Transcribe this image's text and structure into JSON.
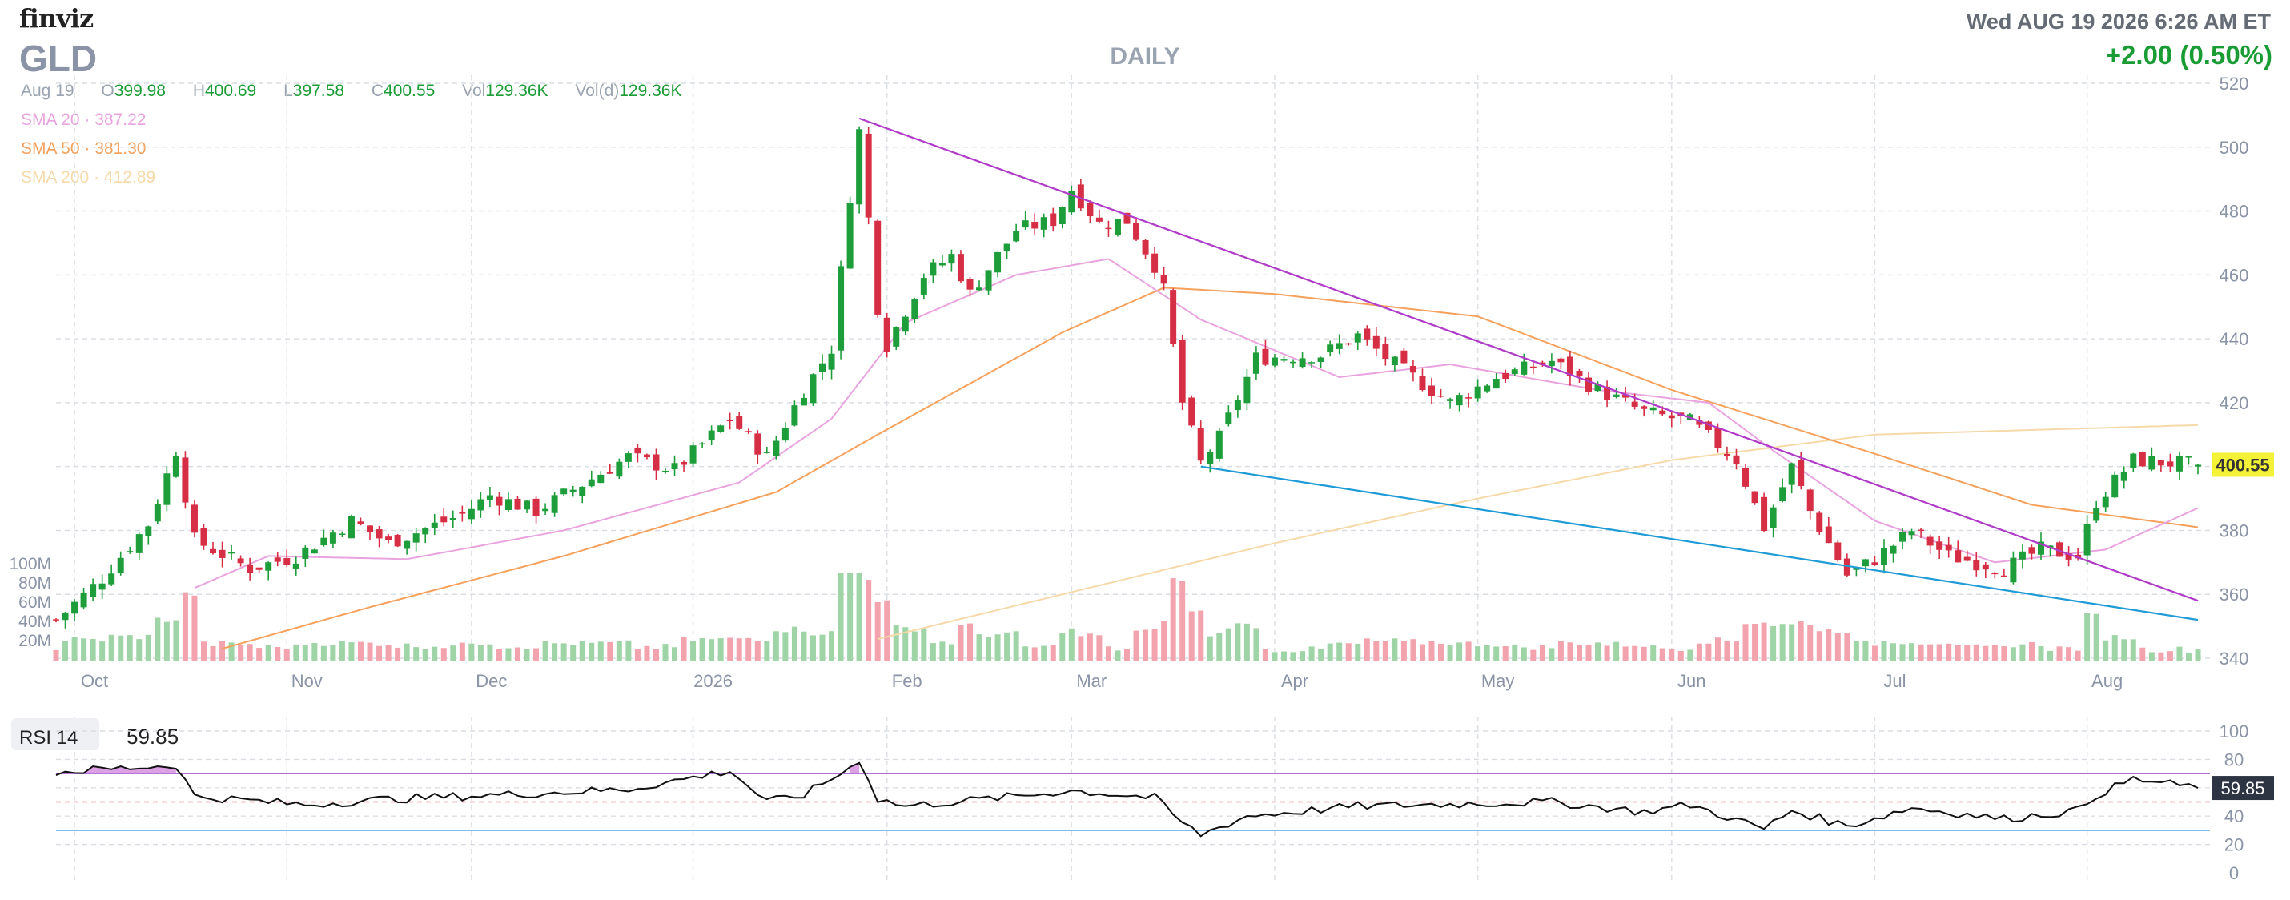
{
  "header": {
    "logo": "finviz",
    "ticker": "GLD",
    "timeframe": "DAILY",
    "datetime": "Wed AUG 19 2026 6:26 AM ET",
    "change": "+2.00 (0.50%)"
  },
  "ohlc": {
    "date": "Aug 19",
    "open_label": "O",
    "open": "399.98",
    "high_label": "H",
    "high": "400.69",
    "low_label": "L",
    "low": "397.58",
    "close_label": "C",
    "close": "400.55",
    "vol_label": "Vol",
    "vol": "129.36K",
    "vold_label": "Vol(d)",
    "vold": "129.36K"
  },
  "sma": [
    {
      "label": "SMA 20",
      "value": "387.22",
      "color": "#e9a3de"
    },
    {
      "label": "SMA 50",
      "value": "381.30",
      "color": "#f5a15c"
    },
    {
      "label": "SMA 200",
      "value": "412.89",
      "color": "#f6d9a9"
    }
  ],
  "colors": {
    "up": "#1e9e3a",
    "down": "#d62f45",
    "vol_up": "#9fd4a7",
    "vol_down": "#f2a3ad",
    "trend_upper": "#b03bc8",
    "trend_lower": "#1f9bd6",
    "rsi": "#111111",
    "rsi_fill": "#d68fe0",
    "price_tag": "#f4f236"
  },
  "chart_data": {
    "type": "candlestick",
    "y_range": [
      340,
      520
    ],
    "y_ticks": [
      "520",
      "500",
      "480",
      "460",
      "440",
      "420",
      "400",
      "380",
      "360",
      "340"
    ],
    "x_labels": [
      "Oct",
      "Nov",
      "Dec",
      "2026",
      "Feb",
      "Mar",
      "Apr",
      "May",
      "Jun",
      "Jul",
      "Aug"
    ],
    "last_price": "400.55",
    "volume_ticks": [
      "100M",
      "80M",
      "60M",
      "40M",
      "20M"
    ],
    "trendlines": [
      {
        "from": [
          "2026-01-28",
          509
        ],
        "to": [
          "2026-08-19",
          358
        ]
      },
      {
        "from": [
          "2026-03-20",
          400
        ],
        "to": [
          "2026-08-19",
          352
        ]
      }
    ],
    "rsi": {
      "label": "RSI 14",
      "value": "59.85",
      "levels": [
        70,
        30
      ],
      "ticks": [
        "100",
        "80",
        "60",
        "40",
        "20",
        "0"
      ]
    },
    "price_keyframes": [
      [
        "2025-09-29",
        352
      ],
      [
        "2025-10-06",
        365
      ],
      [
        "2025-10-13",
        382
      ],
      [
        "2025-10-16",
        405
      ],
      [
        "2025-10-20",
        377
      ],
      [
        "2025-10-28",
        368
      ],
      [
        "2025-11-04",
        372
      ],
      [
        "2025-11-12",
        383
      ],
      [
        "2025-11-18",
        376
      ],
      [
        "2025-11-28",
        385
      ],
      [
        "2025-12-03",
        391
      ],
      [
        "2025-12-10",
        386
      ],
      [
        "2025-12-24",
        403
      ],
      [
        "2025-12-31",
        399
      ],
      [
        "2026-01-08",
        415
      ],
      [
        "2026-01-14",
        403
      ],
      [
        "2026-01-20",
        424
      ],
      [
        "2026-01-23",
        437
      ],
      [
        "2026-01-27",
        485
      ],
      [
        "2026-01-28",
        505
      ],
      [
        "2026-01-30",
        450
      ],
      [
        "2026-02-02",
        438
      ],
      [
        "2026-02-06",
        460
      ],
      [
        "2026-02-11",
        466
      ],
      [
        "2026-02-13",
        454
      ],
      [
        "2026-02-20",
        474
      ],
      [
        "2026-02-26",
        477
      ],
      [
        "2026-03-02",
        487
      ],
      [
        "2026-03-05",
        476
      ],
      [
        "2026-03-10",
        477
      ],
      [
        "2026-03-13",
        463
      ],
      [
        "2026-03-16",
        455
      ],
      [
        "2026-03-18",
        420
      ],
      [
        "2026-03-20",
        401
      ],
      [
        "2026-03-24",
        409
      ],
      [
        "2026-03-30",
        434
      ],
      [
        "2026-04-08",
        435
      ],
      [
        "2026-04-14",
        441
      ],
      [
        "2026-04-20",
        432
      ],
      [
        "2026-04-28",
        420
      ],
      [
        "2026-05-05",
        428
      ],
      [
        "2026-05-13",
        433
      ],
      [
        "2026-05-20",
        424
      ],
      [
        "2026-05-27",
        417
      ],
      [
        "2026-06-03",
        414
      ],
      [
        "2026-06-10",
        402
      ],
      [
        "2026-06-15",
        381
      ],
      [
        "2026-06-18",
        400
      ],
      [
        "2026-06-22",
        386
      ],
      [
        "2026-06-26",
        366
      ],
      [
        "2026-07-01",
        371
      ],
      [
        "2026-07-07",
        380
      ],
      [
        "2026-07-13",
        372
      ],
      [
        "2026-07-21",
        368
      ],
      [
        "2026-07-27",
        374
      ],
      [
        "2026-07-31",
        372
      ],
      [
        "2026-08-04",
        389
      ],
      [
        "2026-08-10",
        402
      ],
      [
        "2026-08-19",
        400.55
      ]
    ],
    "sma20_keyframes": [
      [
        "2025-10-20",
        362
      ],
      [
        "2025-10-30",
        372
      ],
      [
        "2025-11-20",
        371
      ],
      [
        "2025-12-15",
        380
      ],
      [
        "2026-01-10",
        395
      ],
      [
        "2026-01-24",
        415
      ],
      [
        "2026-02-04",
        445
      ],
      [
        "2026-02-20",
        460
      ],
      [
        "2026-03-06",
        465
      ],
      [
        "2026-03-20",
        446
      ],
      [
        "2026-04-10",
        428
      ],
      [
        "2026-04-28",
        432
      ],
      [
        "2026-05-20",
        424
      ],
      [
        "2026-06-05",
        420
      ],
      [
        "2026-06-16",
        405
      ],
      [
        "2026-07-01",
        383
      ],
      [
        "2026-07-20",
        370
      ],
      [
        "2026-08-05",
        374
      ],
      [
        "2026-08-19",
        387
      ]
    ],
    "sma50_keyframes": [
      [
        "2025-10-23",
        343
      ],
      [
        "2025-11-15",
        356
      ],
      [
        "2025-12-15",
        372
      ],
      [
        "2026-01-15",
        392
      ],
      [
        "2026-01-31",
        410
      ],
      [
        "2026-03-01",
        442
      ],
      [
        "2026-03-16",
        456
      ],
      [
        "2026-04-01",
        454
      ],
      [
        "2026-05-01",
        447
      ],
      [
        "2026-06-01",
        424
      ],
      [
        "2026-07-01",
        404
      ],
      [
        "2026-07-25",
        388
      ],
      [
        "2026-08-19",
        381
      ]
    ],
    "sma200_keyframes": [
      [
        "2026-01-31",
        346
      ],
      [
        "2026-03-01",
        360
      ],
      [
        "2026-04-01",
        376
      ],
      [
        "2026-05-01",
        390
      ],
      [
        "2026-06-01",
        402
      ],
      [
        "2026-07-01",
        410
      ],
      [
        "2026-08-19",
        413
      ]
    ],
    "rsi_keyframes": [
      [
        "2025-09-29",
        71
      ],
      [
        "2025-10-16",
        76
      ],
      [
        "2025-10-20",
        54
      ],
      [
        "2025-10-28",
        51
      ],
      [
        "2025-11-05",
        48
      ],
      [
        "2025-11-18",
        52
      ],
      [
        "2025-12-10",
        56
      ],
      [
        "2025-12-24",
        59
      ],
      [
        "2026-01-08",
        72
      ],
      [
        "2026-01-14",
        50
      ],
      [
        "2026-01-20",
        55
      ],
      [
        "2026-01-27",
        74
      ],
      [
        "2026-01-28",
        80
      ],
      [
        "2026-01-30",
        52
      ],
      [
        "2026-02-04",
        47
      ],
      [
        "2026-02-20",
        54
      ],
      [
        "2026-03-02",
        58
      ],
      [
        "2026-03-13",
        53
      ],
      [
        "2026-03-18",
        35
      ],
      [
        "2026-03-20",
        27
      ],
      [
        "2026-03-27",
        40
      ],
      [
        "2026-04-14",
        47
      ],
      [
        "2026-05-13",
        50
      ],
      [
        "2026-05-27",
        43
      ],
      [
        "2026-06-03",
        48
      ],
      [
        "2026-06-15",
        31
      ],
      [
        "2026-06-18",
        44
      ],
      [
        "2026-06-26",
        33
      ],
      [
        "2026-07-07",
        46
      ],
      [
        "2026-07-21",
        38
      ],
      [
        "2026-07-31",
        44
      ],
      [
        "2026-08-04",
        55
      ],
      [
        "2026-08-10",
        66
      ],
      [
        "2026-08-19",
        59.85
      ]
    ]
  }
}
